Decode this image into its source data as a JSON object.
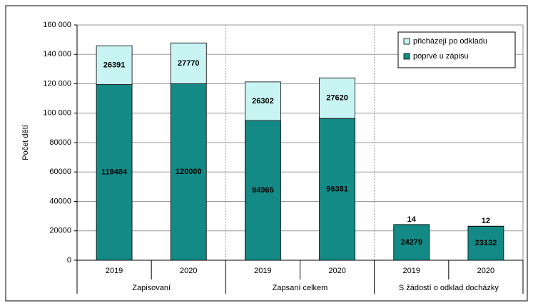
{
  "chart_data": {
    "type": "stacked_bar",
    "ylabel": "Počet dětí",
    "categories": [
      "2019",
      "2020",
      "2019",
      "2020",
      "2019",
      "2020"
    ],
    "category_groups": [
      "Zapisovaní",
      "Zapsaní celkem",
      "S žádostí o odklad docházky"
    ],
    "series": [
      {
        "name": "poprvé u zápisu",
        "color": "#138a86",
        "values": [
          119484,
          120000,
          94965,
          96381,
          24279,
          23132
        ]
      },
      {
        "name": "přicházejí po odkladu",
        "color": "#c8f4f4",
        "values": [
          26391,
          27770,
          26302,
          27620,
          14,
          12
        ]
      }
    ],
    "ylim": [
      0,
      160000
    ],
    "yticks": [
      0,
      20000,
      40000,
      60000,
      80000,
      {
        "value": 100000,
        "label": "100 000"
      },
      {
        "value": 120000,
        "label": "120 000"
      },
      {
        "value": 140000,
        "label": "140 000"
      },
      {
        "value": 160000,
        "label": "160 000"
      }
    ],
    "grid": true,
    "legend": "upper right"
  }
}
